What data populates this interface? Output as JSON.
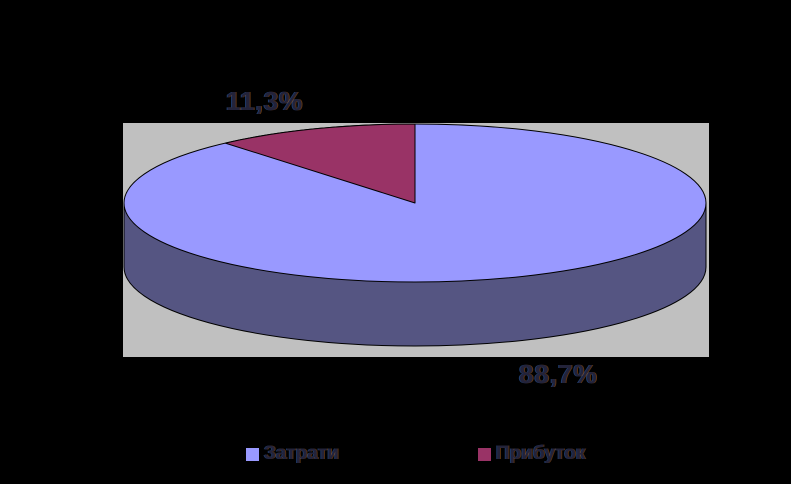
{
  "chart_data": {
    "type": "pie",
    "style": "3d-pie",
    "title": "",
    "categories": [
      "Затрати",
      "Прибуток"
    ],
    "values": [
      88.7,
      11.3
    ],
    "data_labels": [
      "88,7%",
      "11,3%"
    ],
    "colors": [
      "#9999ff",
      "#993366"
    ],
    "side_color": "#555582",
    "plot_bg": "#c0c0c0",
    "chart_bg": "#000000",
    "legend_position": "bottom",
    "start_angle_deg": 0,
    "notes": "large blue slice 88,7% fills most of pie; small dark-red slice 11,3% at top-left of 12 o'clock"
  },
  "labels": {
    "slice_small": "11,3%",
    "slice_large": "88,7%"
  },
  "legend": {
    "items": [
      {
        "label": "Затрати",
        "color": "#9999ff"
      },
      {
        "label": "Прибуток",
        "color": "#993366"
      }
    ]
  }
}
